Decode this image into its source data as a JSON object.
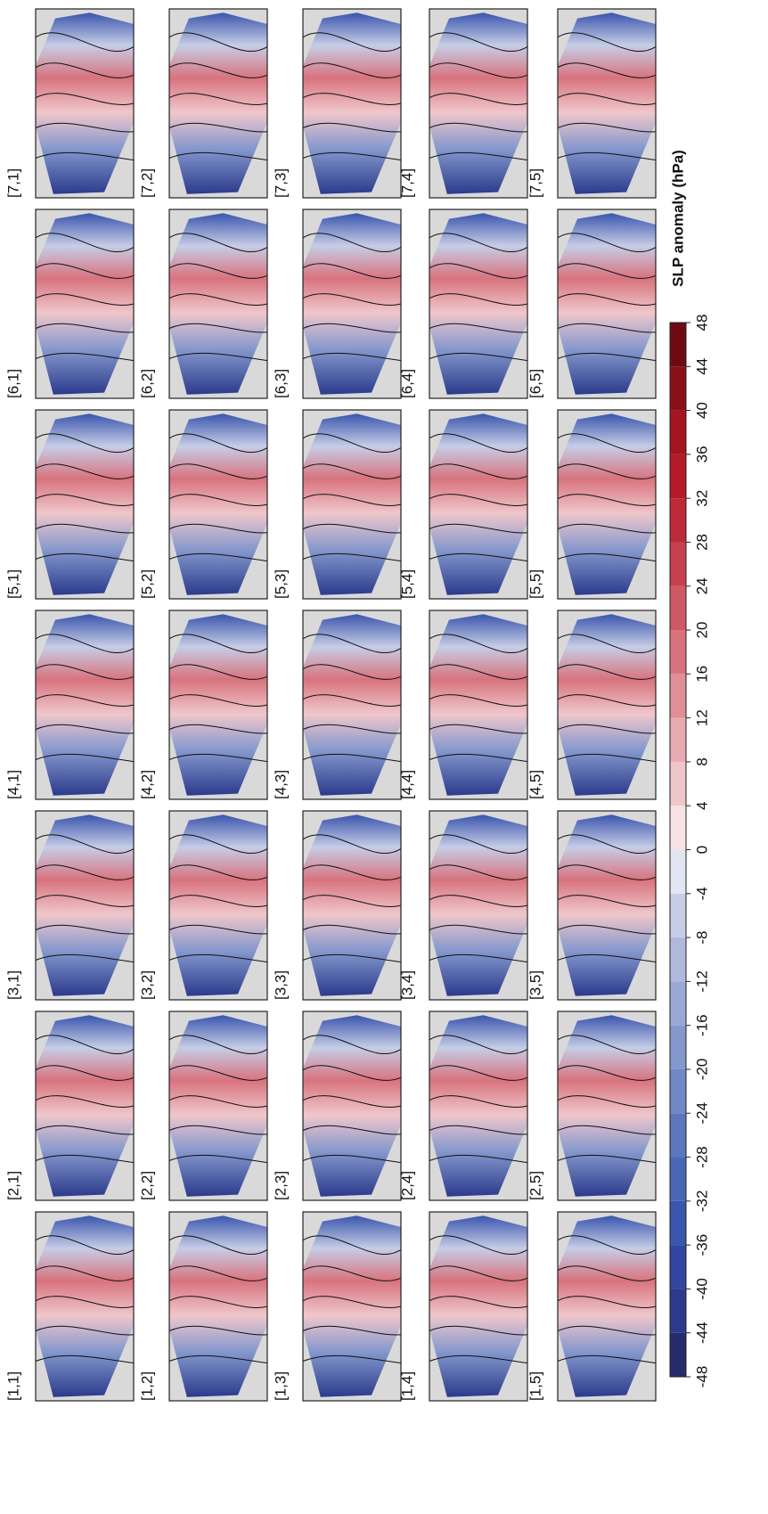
{
  "grid": [
    [
      "[7,1]",
      "[7,2]",
      "[7,3]",
      "[7,4]",
      "[7,5]"
    ],
    [
      "[6,1]",
      "[6,2]",
      "[6,3]",
      "[6,4]",
      "[6,5]"
    ],
    [
      "[5,1]",
      "[5,2]",
      "[5,3]",
      "[5,4]",
      "[5,5]"
    ],
    [
      "[4,1]",
      "[4,2]",
      "[4,3]",
      "[4,4]",
      "[4,5]"
    ],
    [
      "[3,1]",
      "[3,2]",
      "[3,3]",
      "[3,4]",
      "[3,5]"
    ],
    [
      "[2,1]",
      "[2,2]",
      "[2,3]",
      "[2,4]",
      "[2,5]"
    ],
    [
      "[1,1]",
      "[1,2]",
      "[1,3]",
      "[1,4]",
      "[1,5]"
    ]
  ],
  "colorbar": {
    "label": "SLP anomaly (hPa)",
    "ticks": [
      -48,
      -44,
      -40,
      -36,
      -32,
      -28,
      -24,
      -20,
      -16,
      -12,
      -8,
      -4,
      0,
      4,
      8,
      12,
      16,
      20,
      24,
      28,
      32,
      36,
      40,
      44,
      48
    ],
    "colors": [
      "#262c6b",
      "#2b3a8c",
      "#3146a0",
      "#3a55ad",
      "#4a66b7",
      "#5c77bf",
      "#7088c6",
      "#8598cd",
      "#9aa8d5",
      "#afb8dd",
      "#c6cde6",
      "#e2e5f2",
      "#f6e3e5",
      "#efc7cb",
      "#e8aab1",
      "#e08e97",
      "#d8737e",
      "#cf5865",
      "#c6404d",
      "#bd2a37",
      "#b51b27",
      "#a3151f",
      "#8a1018",
      "#6e0b12"
    ]
  }
}
